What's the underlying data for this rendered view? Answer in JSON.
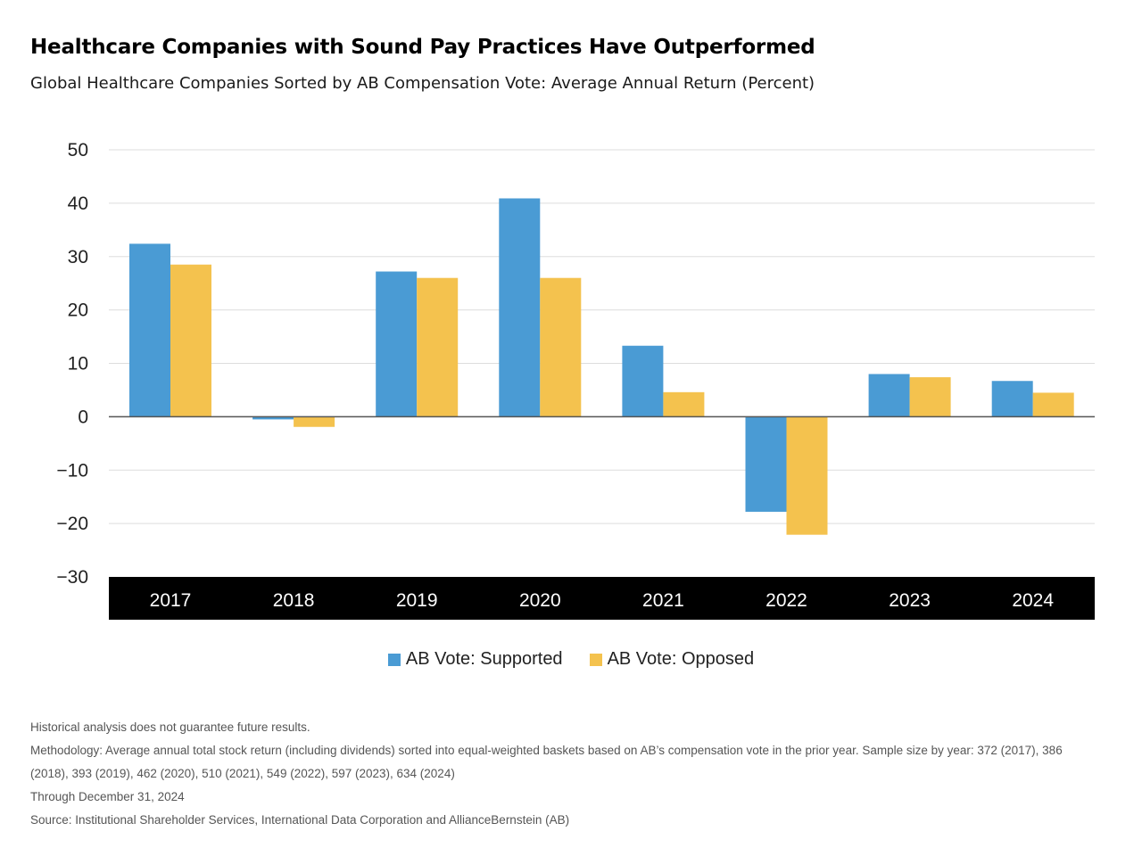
{
  "colors": {
    "supported": "#4A9BD4",
    "opposed": "#F4C24E",
    "axis_band": "#000000",
    "gridline": "#dddddd",
    "zero_line": "#555555"
  },
  "notes": {
    "disclaimer": "Historical analysis does not guarantee future results.",
    "methodology": "Methodology: Average annual total stock return (including dividends) sorted into equal-weighted baskets based on AB’s compensation vote in the prior year. Sample size by year: 372 (2017), 386 (2018), 393 (2019), 462 (2020), 510 (2021), 549 (2022), 597 (2023), 634 (2024)",
    "through": "Through December 31, 2024",
    "source": "Source: Institutional Shareholder Services, International Data Corporation and AllianceBernstein (AB)"
  },
  "chart_data": {
    "type": "bar",
    "title": "Healthcare Companies with Sound Pay Practices Have Outperformed",
    "subtitle": "Global Healthcare Companies Sorted by AB Compensation Vote: Average Annual Return (Percent)",
    "xlabel": "",
    "ylabel": "",
    "categories": [
      "2017",
      "2018",
      "2019",
      "2020",
      "2021",
      "2022",
      "2023",
      "2024"
    ],
    "ylim": [
      -30,
      50
    ],
    "yticks": [
      50,
      40,
      30,
      20,
      10,
      0,
      -10,
      -20,
      -30
    ],
    "ytick_labels": [
      "50",
      "40",
      "30",
      "20",
      "10",
      "0",
      "−10",
      "−20",
      "−30"
    ],
    "grid": true,
    "legend_position": "bottom-center",
    "series": [
      {
        "name": "AB Vote: Supported",
        "values": [
          32.4,
          -0.5,
          27.2,
          40.9,
          13.3,
          -17.8,
          8.0,
          6.7
        ]
      },
      {
        "name": "AB Vote: Opposed",
        "values": [
          28.5,
          -1.9,
          26.0,
          26.0,
          4.6,
          -22.1,
          7.4,
          4.5
        ]
      }
    ]
  }
}
